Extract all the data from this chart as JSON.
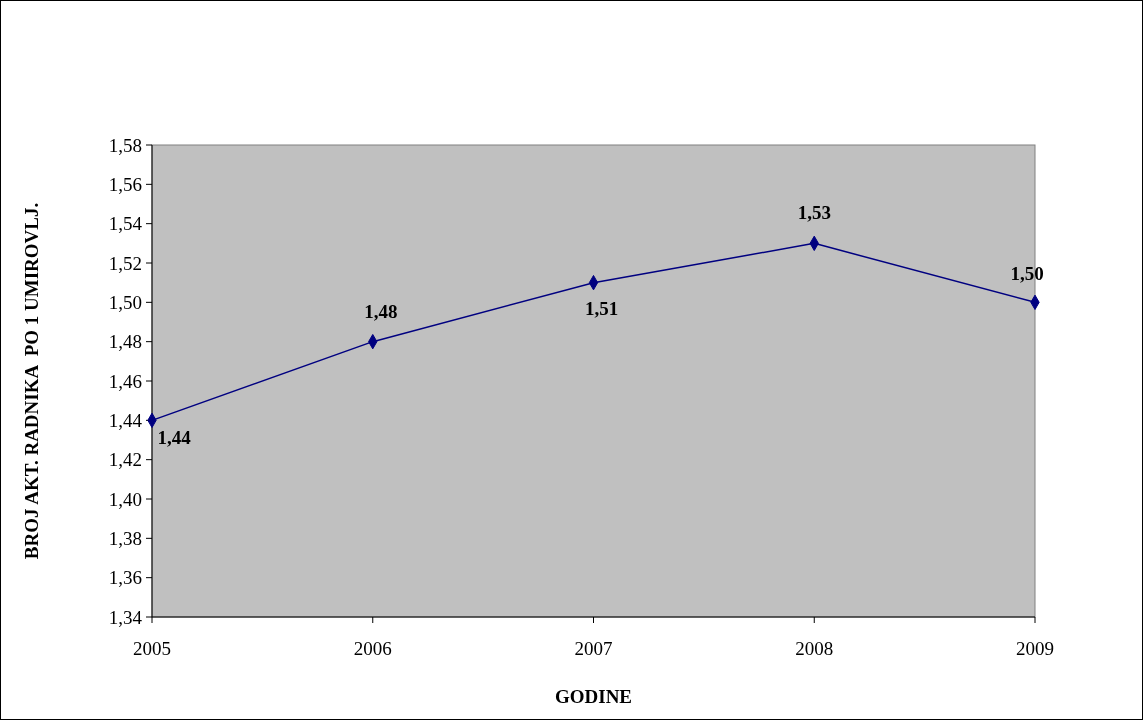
{
  "chart_data": {
    "type": "line",
    "xlabel": "GODINE",
    "ylabel": "BROJ AKT. RADNIKA  PO 1 UMIROVLJ.",
    "categories": [
      "2005",
      "2006",
      "2007",
      "2008",
      "2009"
    ],
    "series": [
      {
        "color": "#000080",
        "values": [
          1.44,
          1.48,
          1.51,
          1.53,
          1.5
        ]
      }
    ],
    "value_labels": [
      "1,44",
      "1,48",
      "1,51",
      "1,53",
      "1,50"
    ],
    "ylim": [
      1.34,
      1.58
    ],
    "yticks": [
      {
        "value": 1.34,
        "label": "1,34"
      },
      {
        "value": 1.36,
        "label": "1,36"
      },
      {
        "value": 1.38,
        "label": "1,38"
      },
      {
        "value": 1.4,
        "label": "1,40"
      },
      {
        "value": 1.42,
        "label": "1,42"
      },
      {
        "value": 1.44,
        "label": "1,44"
      },
      {
        "value": 1.46,
        "label": "1,46"
      },
      {
        "value": 1.48,
        "label": "1,48"
      },
      {
        "value": 1.5,
        "label": "1,50"
      },
      {
        "value": 1.52,
        "label": "1,52"
      },
      {
        "value": 1.54,
        "label": "1,54"
      },
      {
        "value": 1.56,
        "label": "1,56"
      },
      {
        "value": 1.58,
        "label": "1,58"
      }
    ],
    "marker": "diamond",
    "line_style": "solid"
  }
}
